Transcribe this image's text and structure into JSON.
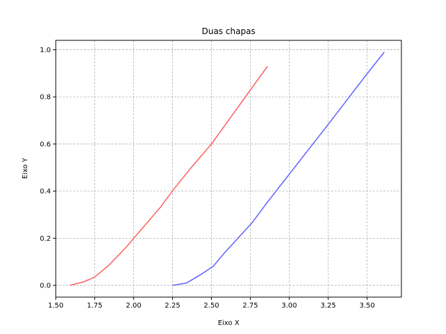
{
  "chart_data": {
    "type": "line",
    "title": "Duas chapas",
    "xlabel": "Eixo X",
    "ylabel": "Eixo Y",
    "xlim": [
      1.5,
      3.72
    ],
    "ylim": [
      -0.05,
      1.04
    ],
    "xticks": [
      1.5,
      1.75,
      2.0,
      2.25,
      2.5,
      2.75,
      3.0,
      3.25,
      3.5
    ],
    "xtick_labels": [
      "1.50",
      "1.75",
      "2.00",
      "2.25",
      "2.50",
      "2.75",
      "3.00",
      "3.25",
      "3.50"
    ],
    "yticks": [
      0.0,
      0.2,
      0.4,
      0.6,
      0.8,
      1.0
    ],
    "ytick_labels": [
      "0.0",
      "0.2",
      "0.4",
      "0.6",
      "0.8",
      "1.0"
    ],
    "grid": true,
    "series": [
      {
        "color": "#ff6060",
        "x": [
          1.59,
          1.68,
          1.75,
          1.84,
          1.95,
          2.06,
          2.17,
          2.26,
          2.37,
          2.5,
          2.62,
          2.74,
          2.86
        ],
        "y": [
          0.0,
          0.015,
          0.035,
          0.085,
          0.16,
          0.245,
          0.33,
          0.41,
          0.5,
          0.6,
          0.71,
          0.82,
          0.93
        ]
      },
      {
        "color": "#6060ff",
        "x": [
          2.25,
          2.34,
          2.43,
          2.51,
          2.58,
          2.67,
          2.76,
          2.85,
          2.98,
          3.11,
          3.24,
          3.38,
          3.49,
          3.61
        ],
        "y": [
          0.0,
          0.01,
          0.045,
          0.08,
          0.135,
          0.2,
          0.265,
          0.345,
          0.455,
          0.565,
          0.675,
          0.795,
          0.89,
          0.99
        ]
      }
    ]
  }
}
